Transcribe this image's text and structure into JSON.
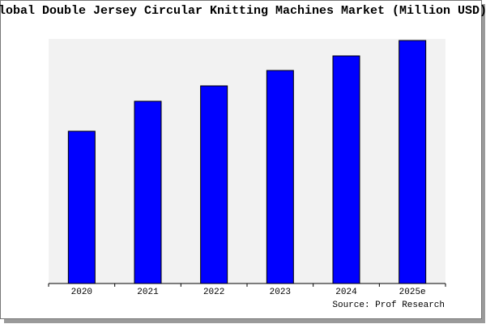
{
  "chart_data": {
    "type": "bar",
    "title": "Global Double Jersey Circular Knitting Machines Market (Million USD)",
    "source": "Source: Prof Research",
    "categories": [
      "2020",
      "2021",
      "2022",
      "2023",
      "2024",
      "2025e"
    ],
    "values": [
      188,
      225,
      244,
      263,
      281,
      300
    ],
    "color": "#0000ff",
    "ylim": [
      0,
      302
    ]
  }
}
